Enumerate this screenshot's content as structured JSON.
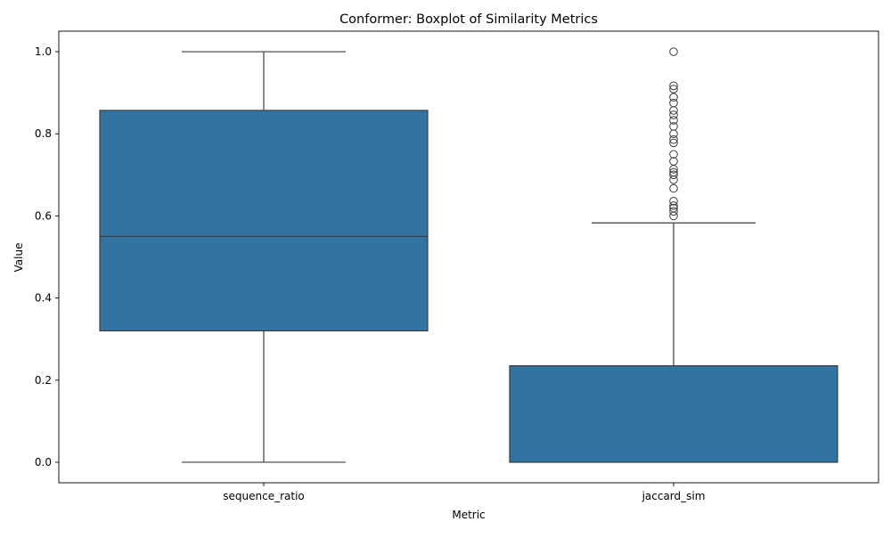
{
  "chart_data": {
    "type": "boxplot",
    "title": "Conformer: Boxplot of Similarity Metrics",
    "xlabel": "Metric",
    "ylabel": "Value",
    "ylim": [
      -0.05,
      1.05
    ],
    "yticks": [
      "0.0",
      "0.2",
      "0.4",
      "0.6",
      "0.8",
      "1.0"
    ],
    "ytick_values": [
      0.0,
      0.2,
      0.4,
      0.6,
      0.8,
      1.0
    ],
    "grid": false,
    "categories": [
      "sequence_ratio",
      "jaccard_sim"
    ],
    "box_color": "#3274a1",
    "line_color": "#3d3d3d",
    "boxes": [
      {
        "name": "sequence_ratio",
        "whisker_low": 0.0,
        "q1": 0.32,
        "median": 0.55,
        "q3": 0.857,
        "whisker_high": 1.0,
        "outliers": []
      },
      {
        "name": "jaccard_sim",
        "whisker_low": 0.0,
        "q1": 0.0,
        "median": 0.0,
        "q3": 0.235,
        "whisker_high": 0.583,
        "outliers": [
          0.6,
          0.611,
          0.619,
          0.625,
          0.636,
          0.667,
          0.688,
          0.7,
          0.706,
          0.714,
          0.733,
          0.75,
          0.778,
          0.786,
          0.8,
          0.818,
          0.833,
          0.846,
          0.857,
          0.875,
          0.889,
          0.909,
          0.917,
          1.0
        ]
      }
    ]
  }
}
